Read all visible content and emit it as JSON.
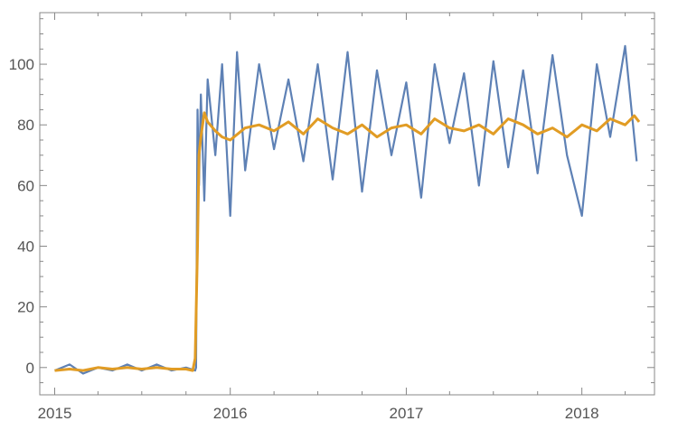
{
  "chart_data": {
    "type": "line",
    "title": "",
    "xlabel": "",
    "ylabel": "",
    "xlim": [
      "2014-12-01",
      "2018-06-01"
    ],
    "ylim": [
      -9,
      117
    ],
    "x_ticks": [
      "2015",
      "2016",
      "2017",
      "2018"
    ],
    "y_ticks": [
      0,
      20,
      40,
      60,
      80,
      100
    ],
    "grid": false,
    "legend": "none",
    "frame": true,
    "series": [
      {
        "kind": "raw",
        "color": "#5e81b5",
        "x": [
          "2015-01-01",
          "2015-02-01",
          "2015-03-01",
          "2015-04-01",
          "2015-05-01",
          "2015-06-01",
          "2015-07-01",
          "2015-08-01",
          "2015-09-01",
          "2015-10-01",
          "2015-10-20",
          "2015-10-22",
          "2015-10-25",
          "2015-10-28",
          "2015-11-01",
          "2015-11-08",
          "2015-11-15",
          "2015-12-01",
          "2015-12-15",
          "2016-01-01",
          "2016-01-15",
          "2016-02-01",
          "2016-03-01",
          "2016-04-01",
          "2016-05-01",
          "2016-06-01",
          "2016-07-01",
          "2016-08-01",
          "2016-09-01",
          "2016-10-01",
          "2016-11-01",
          "2016-12-01",
          "2017-01-01",
          "2017-02-01",
          "2017-03-01",
          "2017-04-01",
          "2017-05-01",
          "2017-06-01",
          "2017-07-01",
          "2017-08-01",
          "2017-09-01",
          "2017-10-01",
          "2017-11-01",
          "2017-12-01",
          "2018-01-01",
          "2018-02-01",
          "2018-03-01",
          "2018-04-01",
          "2018-04-25"
        ],
        "y": [
          -1,
          1,
          -2,
          0,
          -1,
          1,
          -1,
          1,
          -1,
          0,
          -1,
          0,
          85,
          60,
          90,
          55,
          95,
          70,
          100,
          50,
          104,
          65,
          100,
          72,
          95,
          68,
          100,
          62,
          104,
          58,
          98,
          70,
          94,
          56,
          100,
          74,
          97,
          60,
          101,
          66,
          98,
          64,
          103,
          70,
          50,
          100,
          76,
          106,
          68
        ],
        "min": -3,
        "max": 106
      },
      {
        "kind": "moving-average",
        "color": "#e19c24",
        "x": [
          "2015-01-01",
          "2015-02-01",
          "2015-03-01",
          "2015-04-01",
          "2015-05-01",
          "2015-06-01",
          "2015-07-01",
          "2015-08-01",
          "2015-09-01",
          "2015-10-01",
          "2015-10-15",
          "2015-10-20",
          "2015-10-25",
          "2015-10-28",
          "2015-11-01",
          "2015-11-08",
          "2015-11-15",
          "2015-12-01",
          "2015-12-15",
          "2016-01-01",
          "2016-02-01",
          "2016-03-01",
          "2016-04-01",
          "2016-05-01",
          "2016-06-01",
          "2016-07-01",
          "2016-08-01",
          "2016-09-01",
          "2016-10-01",
          "2016-11-01",
          "2016-12-01",
          "2017-01-01",
          "2017-02-01",
          "2017-03-01",
          "2017-04-01",
          "2017-05-01",
          "2017-06-01",
          "2017-07-01",
          "2017-08-01",
          "2017-09-01",
          "2017-10-01",
          "2017-11-01",
          "2017-12-01",
          "2018-01-01",
          "2018-02-01",
          "2018-03-01",
          "2018-04-01",
          "2018-04-20",
          "2018-04-30"
        ],
        "y": [
          -1,
          -0.5,
          -1,
          0,
          -0.5,
          0,
          -0.5,
          0,
          -0.5,
          -0.5,
          -1,
          3,
          40,
          70,
          76,
          84,
          81,
          78,
          76,
          75,
          79,
          80,
          78,
          81,
          77,
          82,
          79,
          77,
          80,
          76,
          79,
          80,
          77,
          82,
          79,
          78,
          80,
          77,
          82,
          80,
          77,
          79,
          76,
          80,
          78,
          82,
          80,
          83,
          81
        ]
      }
    ]
  }
}
